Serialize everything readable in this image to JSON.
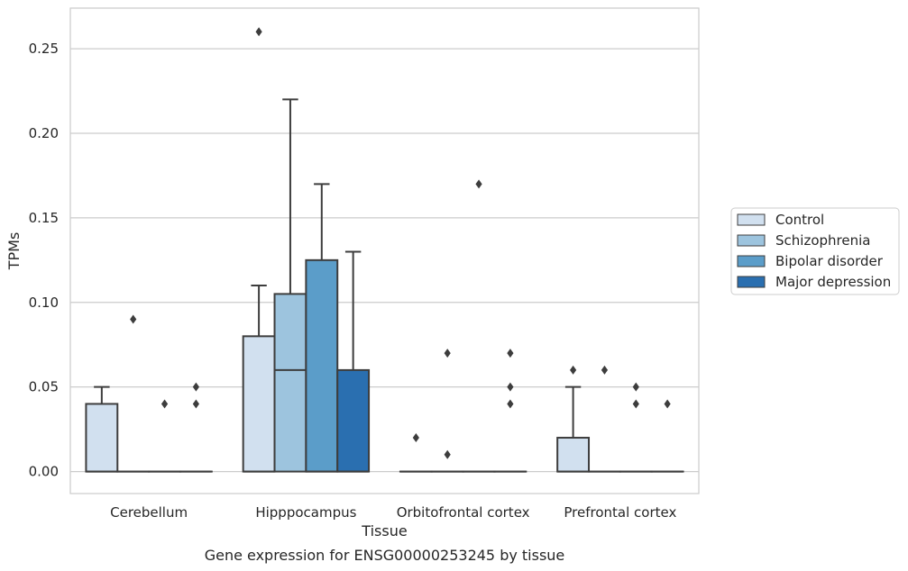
{
  "chart_data": {
    "type": "box",
    "title": "",
    "caption": "Gene expression for ENSG00000253245 by tissue",
    "xlabel": "Tissue",
    "ylabel": "TPMs",
    "ylim": [
      -0.013,
      0.274
    ],
    "yticks": [
      0.0,
      0.05,
      0.1,
      0.15,
      0.2,
      0.25
    ],
    "ytick_labels": [
      "0.00",
      "0.05",
      "0.10",
      "0.15",
      "0.20",
      "0.25"
    ],
    "grid": true,
    "legend_position": "right",
    "categories": [
      "Cerebellum",
      "Hipppocampus",
      "Orbitofrontal cortex",
      "Prefrontal cortex"
    ],
    "series": [
      {
        "name": "Control",
        "color": "#d1e0ef",
        "boxes": [
          {
            "q1": 0.0,
            "median": 0.0,
            "q3": 0.04,
            "whisker_low": 0.0,
            "whisker_high": 0.05,
            "outliers": []
          },
          {
            "q1": 0.0,
            "median": 0.0,
            "q3": 0.08,
            "whisker_low": 0.0,
            "whisker_high": 0.11,
            "outliers": [
              0.26
            ]
          },
          {
            "q1": 0.0,
            "median": 0.0,
            "q3": 0.0,
            "whisker_low": 0.0,
            "whisker_high": 0.0,
            "outliers": [
              0.02
            ]
          },
          {
            "q1": 0.0,
            "median": 0.0,
            "q3": 0.02,
            "whisker_low": 0.0,
            "whisker_high": 0.05,
            "outliers": [
              0.06
            ]
          }
        ]
      },
      {
        "name": "Schizophrenia",
        "color": "#9dc4de",
        "boxes": [
          {
            "q1": 0.0,
            "median": 0.0,
            "q3": 0.0,
            "whisker_low": 0.0,
            "whisker_high": 0.0,
            "outliers": [
              0.09
            ]
          },
          {
            "q1": 0.0,
            "median": 0.06,
            "q3": 0.105,
            "whisker_low": 0.0,
            "whisker_high": 0.22,
            "outliers": []
          },
          {
            "q1": 0.0,
            "median": 0.0,
            "q3": 0.0,
            "whisker_low": 0.0,
            "whisker_high": 0.0,
            "outliers": [
              0.01,
              0.07
            ]
          },
          {
            "q1": 0.0,
            "median": 0.0,
            "q3": 0.0,
            "whisker_low": 0.0,
            "whisker_high": 0.0,
            "outliers": [
              0.06
            ]
          }
        ]
      },
      {
        "name": "Bipolar disorder",
        "color": "#5b9dc9",
        "boxes": [
          {
            "q1": 0.0,
            "median": 0.0,
            "q3": 0.0,
            "whisker_low": 0.0,
            "whisker_high": 0.0,
            "outliers": [
              0.04
            ]
          },
          {
            "q1": 0.0,
            "median": 0.0,
            "q3": 0.125,
            "whisker_low": 0.0,
            "whisker_high": 0.17,
            "outliers": []
          },
          {
            "q1": 0.0,
            "median": 0.0,
            "q3": 0.0,
            "whisker_low": 0.0,
            "whisker_high": 0.0,
            "outliers": [
              0.17
            ]
          },
          {
            "q1": 0.0,
            "median": 0.0,
            "q3": 0.0,
            "whisker_low": 0.0,
            "whisker_high": 0.0,
            "outliers": [
              0.04,
              0.05
            ]
          }
        ]
      },
      {
        "name": "Major depression",
        "color": "#2a6fb0",
        "boxes": [
          {
            "q1": 0.0,
            "median": 0.0,
            "q3": 0.0,
            "whisker_low": 0.0,
            "whisker_high": 0.0,
            "outliers": [
              0.04,
              0.05
            ]
          },
          {
            "q1": 0.0,
            "median": 0.0,
            "q3": 0.06,
            "whisker_low": 0.0,
            "whisker_high": 0.13,
            "outliers": []
          },
          {
            "q1": 0.0,
            "median": 0.0,
            "q3": 0.0,
            "whisker_low": 0.0,
            "whisker_high": 0.0,
            "outliers": [
              0.04,
              0.05,
              0.07
            ]
          },
          {
            "q1": 0.0,
            "median": 0.0,
            "q3": 0.0,
            "whisker_low": 0.0,
            "whisker_high": 0.0,
            "outliers": [
              0.04
            ]
          }
        ]
      }
    ]
  }
}
